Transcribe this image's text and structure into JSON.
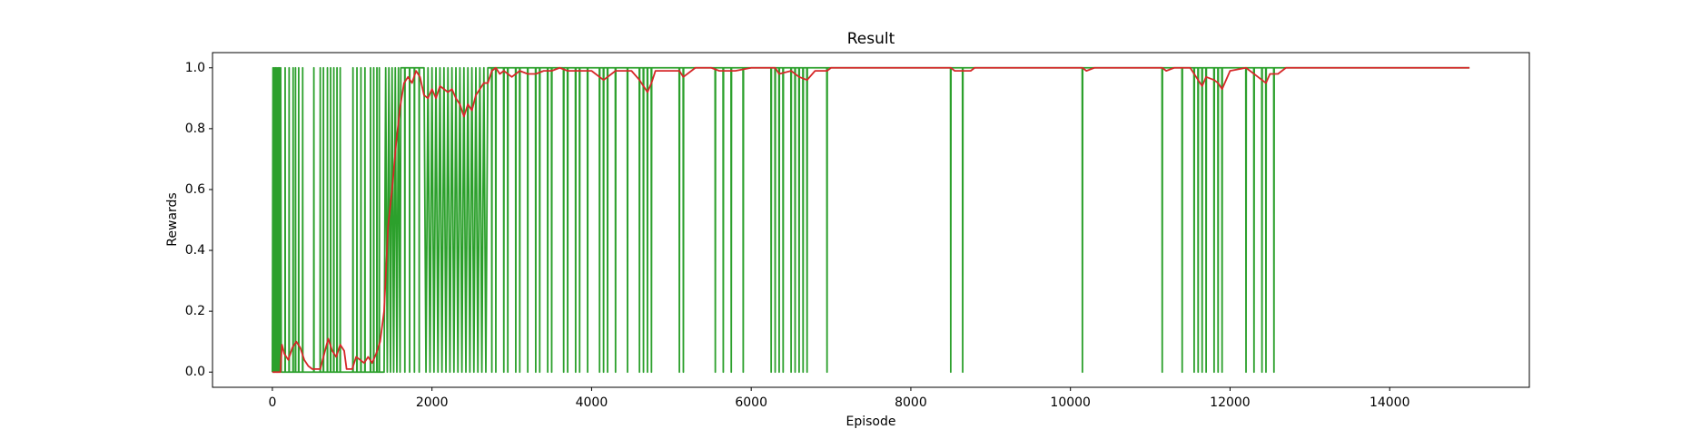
{
  "chart_data": {
    "type": "line",
    "title": "Result",
    "x_label": "Episode",
    "y_label": "Rewards",
    "xlim": [
      -750,
      15750
    ],
    "ylim": [
      -0.05,
      1.05
    ],
    "xticks": [
      0,
      2000,
      4000,
      6000,
      8000,
      10000,
      12000,
      14000
    ],
    "yticks": [
      {
        "value": 0,
        "label": "0.0"
      },
      {
        "value": 0.2,
        "label": "0.2"
      },
      {
        "value": 0.4,
        "label": "0.4"
      },
      {
        "value": 0.6,
        "label": "0.6"
      },
      {
        "value": 0.8,
        "label": "0.8"
      },
      {
        "value": 1,
        "label": "1.0"
      }
    ],
    "grid": false,
    "series": [
      {
        "color": "#2ca02c",
        "x": [
          0,
          8,
          16,
          24,
          32,
          40,
          48,
          56,
          64,
          72,
          80,
          88,
          96,
          104,
          112,
          158,
          160,
          162,
          208,
          210,
          212,
          258,
          260,
          262,
          288,
          290,
          292,
          328,
          330,
          332,
          378,
          380,
          382,
          518,
          520,
          522,
          598,
          600,
          602,
          638,
          640,
          642,
          688,
          690,
          692,
          728,
          730,
          732,
          768,
          770,
          772,
          808,
          810,
          812,
          848,
          850,
          852,
          1008,
          1010,
          1012,
          1058,
          1060,
          1062,
          1108,
          1110,
          1112,
          1158,
          1160,
          1162,
          1228,
          1230,
          1232,
          1268,
          1270,
          1272,
          1308,
          1310,
          1312,
          1338,
          1340,
          1342,
          1400,
          1420,
          1440,
          1460,
          1480,
          1500,
          1520,
          1540,
          1560,
          1580,
          1600,
          1610,
          1658,
          1660,
          1662,
          1718,
          1720,
          1722,
          1778,
          1780,
          1782,
          1838,
          1840,
          1842,
          1900,
          1925,
          1950,
          1975,
          2000,
          2025,
          2050,
          2075,
          2100,
          2125,
          2150,
          2175,
          2200,
          2225,
          2250,
          2275,
          2300,
          2325,
          2350,
          2375,
          2400,
          2425,
          2450,
          2475,
          2500,
          2525,
          2550,
          2575,
          2600,
          2625,
          2650,
          2675,
          2700,
          2747,
          2750,
          2753,
          2797,
          2800,
          2803,
          2897,
          2900,
          2903,
          2947,
          2950,
          2953,
          3047,
          3050,
          3053,
          3097,
          3100,
          3103,
          3197,
          3200,
          3203,
          3297,
          3300,
          3303,
          3347,
          3350,
          3353,
          3447,
          3450,
          3453,
          3497,
          3500,
          3503,
          3647,
          3650,
          3653,
          3697,
          3700,
          3703,
          3797,
          3800,
          3803,
          3847,
          3850,
          3853,
          3947,
          3950,
          3953,
          4097,
          4100,
          4103,
          4147,
          4150,
          4153,
          4197,
          4200,
          4203,
          4297,
          4300,
          4303,
          4447,
          4450,
          4453,
          4597,
          4600,
          4603,
          4647,
          4650,
          4653,
          4697,
          4700,
          4703,
          4747,
          4750,
          4753,
          5097,
          5100,
          5103,
          5147,
          5150,
          5153,
          5547,
          5550,
          5553,
          5647,
          5650,
          5653,
          5747,
          5750,
          5753,
          5897,
          5900,
          5903,
          6247,
          6250,
          6253,
          6297,
          6300,
          6303,
          6347,
          6350,
          6353,
          6397,
          6400,
          6403,
          6497,
          6500,
          6503,
          6547,
          6550,
          6553,
          6597,
          6600,
          6603,
          6647,
          6650,
          6653,
          6697,
          6700,
          6703,
          6947,
          6950,
          6953,
          8497,
          8500,
          8503,
          8647,
          8650,
          8653,
          10147,
          10150,
          10153,
          11147,
          11150,
          11153,
          11397,
          11400,
          11403,
          11547,
          11550,
          11553,
          11597,
          11600,
          11603,
          11647,
          11650,
          11653,
          11697,
          11700,
          11703,
          11797,
          11800,
          11803,
          11847,
          11850,
          11853,
          11897,
          11900,
          11903,
          12197,
          12200,
          12203,
          12297,
          12300,
          12303,
          12397,
          12400,
          12403,
          12447,
          12450,
          12453,
          12547,
          12550,
          12553,
          15000
        ],
        "values": [
          0,
          1,
          0,
          1,
          0,
          1,
          0,
          1,
          0,
          1,
          0,
          1,
          0,
          1,
          0,
          0,
          1,
          0,
          0,
          1,
          0,
          0,
          1,
          0,
          0,
          1,
          0,
          0,
          1,
          0,
          0,
          1,
          0,
          0,
          1,
          0,
          0,
          1,
          0,
          0,
          1,
          0,
          0,
          1,
          0,
          0,
          1,
          0,
          0,
          1,
          0,
          0,
          1,
          0,
          0,
          1,
          0,
          0,
          1,
          0,
          0,
          1,
          0,
          0,
          1,
          0,
          0,
          1,
          0,
          0,
          1,
          0,
          0,
          1,
          0,
          0,
          1,
          0,
          0,
          1,
          0,
          0,
          1,
          0,
          1,
          0,
          1,
          0,
          1,
          0,
          1,
          0,
          1,
          1,
          0,
          1,
          1,
          0,
          1,
          1,
          0,
          1,
          1,
          0,
          1,
          1,
          0,
          1,
          0,
          1,
          0,
          1,
          0,
          1,
          0,
          1,
          0,
          1,
          0,
          1,
          0,
          1,
          0,
          1,
          0,
          1,
          0,
          1,
          0,
          1,
          0,
          1,
          0,
          1,
          0,
          1,
          0,
          1,
          1,
          0,
          1,
          1,
          0,
          1,
          1,
          0,
          1,
          1,
          0,
          1,
          1,
          0,
          1,
          1,
          0,
          1,
          1,
          0,
          1,
          1,
          0,
          1,
          1,
          0,
          1,
          1,
          0,
          1,
          1,
          0,
          1,
          1,
          0,
          1,
          1,
          0,
          1,
          1,
          0,
          1,
          1,
          0,
          1,
          1,
          0,
          1,
          1,
          0,
          1,
          1,
          0,
          1,
          1,
          0,
          1,
          1,
          0,
          1,
          1,
          0,
          1,
          1,
          0,
          1,
          1,
          0,
          1,
          1,
          0,
          1,
          1,
          0,
          1,
          1,
          0,
          1,
          1,
          0,
          1,
          1,
          0,
          1,
          1,
          0,
          1,
          1,
          0,
          1,
          1,
          0,
          1,
          1,
          0,
          1,
          1,
          0,
          1,
          1,
          0,
          1,
          1,
          0,
          1,
          1,
          0,
          1,
          1,
          0,
          1,
          1,
          0,
          1,
          1,
          0,
          1,
          1,
          0,
          1,
          1,
          0,
          1,
          1,
          0,
          1,
          1,
          0,
          1,
          1,
          0,
          1,
          1,
          0,
          1,
          1,
          0,
          1,
          1,
          0,
          1,
          1,
          0,
          1,
          1,
          0,
          1,
          1,
          0,
          1,
          1,
          0,
          1,
          1,
          0,
          1,
          1,
          0,
          1,
          1,
          0,
          1,
          1,
          0,
          1,
          1,
          0,
          1,
          1,
          0,
          1,
          1,
          0,
          1,
          1
        ]
      },
      {
        "color": "#d62728",
        "x": [
          0,
          100,
          120,
          150,
          200,
          250,
          300,
          350,
          400,
          450,
          500,
          600,
          650,
          700,
          750,
          800,
          850,
          900,
          930,
          1000,
          1050,
          1100,
          1150,
          1200,
          1250,
          1300,
          1350,
          1400,
          1450,
          1500,
          1550,
          1600,
          1650,
          1700,
          1750,
          1800,
          1850,
          1900,
          1950,
          2000,
          2050,
          2100,
          2150,
          2200,
          2250,
          2300,
          2350,
          2400,
          2450,
          2500,
          2550,
          2600,
          2650,
          2700,
          2750,
          2800,
          2850,
          2900,
          3000,
          3100,
          3200,
          3300,
          3400,
          3500,
          3600,
          3700,
          3800,
          3900,
          4000,
          4050,
          4150,
          4250,
          4300,
          4500,
          4600,
          4700,
          4750,
          4800,
          5100,
          5150,
          5250,
          5300,
          5500,
          5600,
          5800,
          6000,
          6300,
          6350,
          6500,
          6600,
          6700,
          6800,
          6950,
          7000,
          8500,
          8550,
          8750,
          8800,
          10150,
          10200,
          10300,
          11150,
          11200,
          11300,
          11500,
          11600,
          11650,
          11700,
          11800,
          11850,
          11900,
          12000,
          12200,
          12250,
          12350,
          12450,
          12500,
          12600,
          12700,
          15000
        ],
        "values": [
          0,
          0,
          0.09,
          0.06,
          0.04,
          0.08,
          0.1,
          0.08,
          0.04,
          0.02,
          0.01,
          0.01,
          0.06,
          0.11,
          0.07,
          0.05,
          0.09,
          0.07,
          0.01,
          0.01,
          0.05,
          0.04,
          0.03,
          0.05,
          0.03,
          0.06,
          0.1,
          0.2,
          0.48,
          0.6,
          0.75,
          0.87,
          0.95,
          0.97,
          0.95,
          0.99,
          0.97,
          0.91,
          0.9,
          0.93,
          0.9,
          0.94,
          0.93,
          0.92,
          0.93,
          0.9,
          0.88,
          0.84,
          0.88,
          0.86,
          0.91,
          0.93,
          0.95,
          0.95,
          0.99,
          1,
          0.98,
          0.99,
          0.97,
          0.99,
          0.98,
          0.98,
          0.99,
          0.99,
          1,
          0.99,
          0.99,
          0.99,
          0.99,
          0.98,
          0.96,
          0.98,
          0.99,
          0.99,
          0.96,
          0.92,
          0.95,
          0.99,
          0.99,
          0.97,
          0.99,
          1,
          1,
          0.99,
          0.99,
          1,
          1,
          0.98,
          0.99,
          0.97,
          0.96,
          0.99,
          0.99,
          1,
          1,
          0.99,
          0.99,
          1,
          1,
          0.99,
          1,
          1,
          0.99,
          1,
          1,
          0.96,
          0.94,
          0.97,
          0.96,
          0.95,
          0.93,
          0.99,
          1,
          0.99,
          0.97,
          0.95,
          0.98,
          0.98,
          1,
          1
        ]
      }
    ]
  }
}
